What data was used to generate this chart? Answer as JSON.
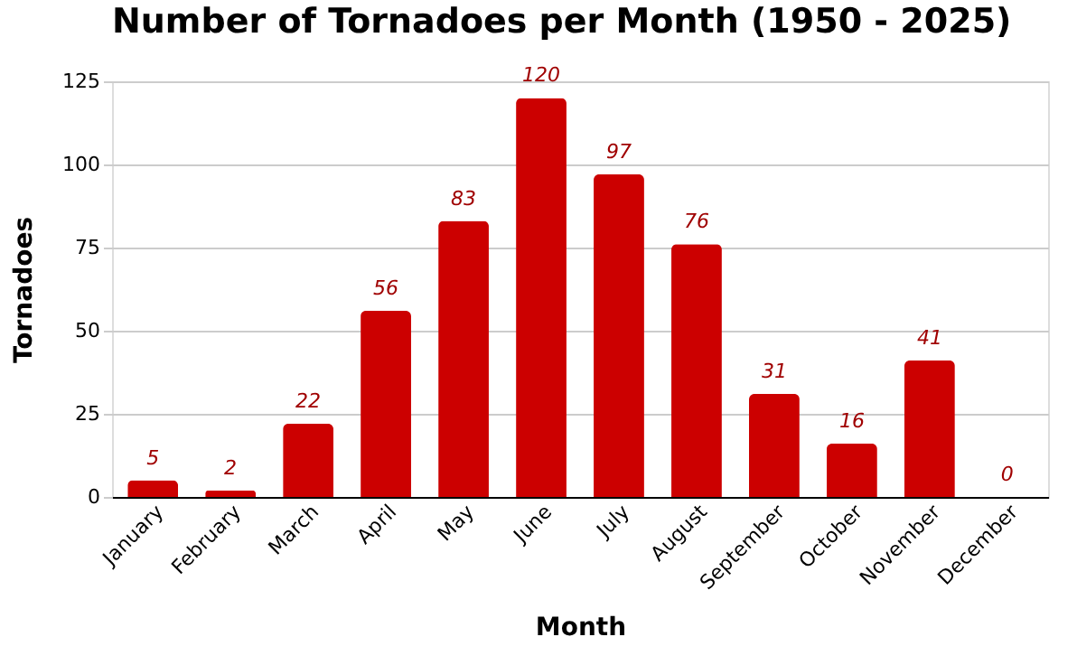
{
  "chart_data": {
    "type": "bar",
    "title": "Number of Tornadoes per Month (1950 - 2025)",
    "xlabel": "Month",
    "ylabel": "Tornadoes",
    "categories": [
      "January",
      "February",
      "March",
      "April",
      "May",
      "June",
      "July",
      "August",
      "September",
      "October",
      "November",
      "December"
    ],
    "series": [
      {
        "color": "#cc0000",
        "values": [
          5,
          2,
          22,
          56,
          83,
          120,
          97,
          76,
          31,
          16,
          41,
          0
        ]
      }
    ],
    "ylim": [
      0,
      125
    ],
    "yticks": [
      0,
      25,
      50,
      75,
      100,
      125
    ],
    "grid": "y",
    "data_labels": true
  }
}
